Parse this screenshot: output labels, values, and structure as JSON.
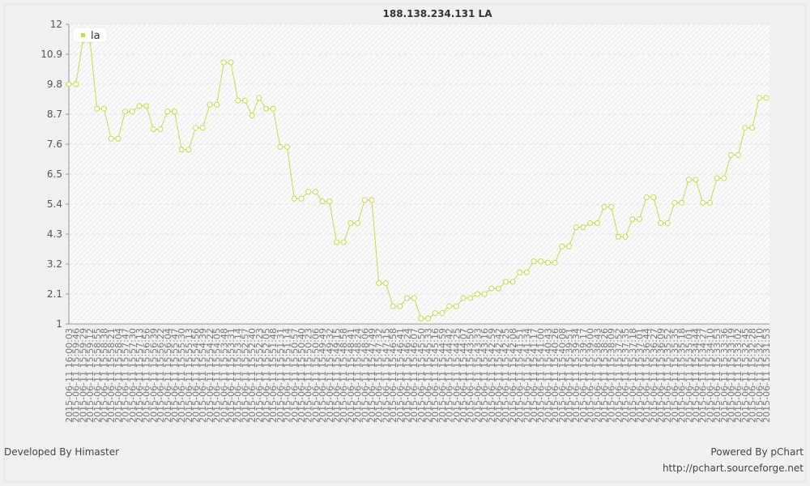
{
  "chart_data": {
    "type": "line",
    "title": "188.138.234.131 LA",
    "footer_left": "Developed By Himaster",
    "footer_right": "Powered By pChart",
    "footer_url": "http://pchart.sourceforge.net",
    "legend": "top-left",
    "grid": true,
    "ylim": [
      1,
      12
    ],
    "yticks": [
      1,
      2.1,
      3.2,
      4.3,
      5.4,
      6.5,
      7.6,
      8.7,
      9.8,
      10.9,
      12
    ],
    "categories": [
      "2015-06-11 16:00:03",
      "2015-06-11 15:59:46",
      "2015-06-11 15:59:29",
      "2015-06-11 15:59:12",
      "2015-06-11 15:58:55",
      "2015-06-11 15:58:38",
      "2015-06-11 15:58:21",
      "2015-06-11 15:58:04",
      "2015-06-11 15:57:47",
      "2015-06-11 15:57:30",
      "2015-06-11 15:57:13",
      "2015-06-11 15:56:56",
      "2015-06-11 15:56:39",
      "2015-06-11 15:56:22",
      "2015-06-11 15:56:04",
      "2015-06-11 15:55:47",
      "2015-06-11 15:55:30",
      "2015-06-11 15:55:13",
      "2015-06-11 15:54:56",
      "2015-06-11 15:54:39",
      "2015-06-11 15:54:22",
      "2015-06-11 15:54:05",
      "2015-06-11 15:53:48",
      "2015-06-11 15:53:31",
      "2015-06-11 15:53:14",
      "2015-06-11 15:52:57",
      "2015-06-11 15:52:40",
      "2015-06-11 15:52:23",
      "2015-06-11 15:52:05",
      "2015-06-11 15:51:48",
      "2015-06-11 15:51:31",
      "2015-06-11 15:51:14",
      "2015-06-11 15:50:57",
      "2015-06-11 15:50:40",
      "2015-06-11 15:50:23",
      "2015-06-11 15:50:06",
      "2015-06-11 15:49:49",
      "2015-06-11 15:49:32",
      "2015-06-11 15:49:15",
      "2015-06-11 15:48:58",
      "2015-06-11 15:48:41",
      "2015-06-11 15:48:24",
      "2015-06-11 15:48:06",
      "2015-06-11 15:47:49",
      "2015-06-11 15:47:32",
      "2015-06-11 15:47:15",
      "2015-06-11 15:46:58",
      "2015-06-11 15:46:41",
      "2015-06-11 15:46:24",
      "2015-06-11 15:46:07",
      "2015-06-11 15:45:50",
      "2015-06-11 15:45:33",
      "2015-06-11 15:45:16",
      "2015-06-11 15:44:59",
      "2015-06-11 15:44:42",
      "2015-06-11 15:44:25",
      "2015-06-11 15:44:07",
      "2015-06-11 15:43:50",
      "2015-06-11 15:43:33",
      "2015-06-11 15:43:16",
      "2015-06-11 15:42:59",
      "2015-06-11 15:42:42",
      "2015-06-11 15:42:25",
      "2015-06-11 15:42:08",
      "2015-06-11 15:41:51",
      "2015-06-11 15:41:34",
      "2015-06-11 15:41:17",
      "2015-06-11 15:41:00",
      "2015-06-11 15:40:43",
      "2015-06-11 15:40:26",
      "2015-06-11 15:40:08",
      "2015-06-11 15:39:51",
      "2015-06-11 15:39:34",
      "2015-06-11 15:39:17",
      "2015-06-11 15:39:00",
      "2015-06-11 15:38:43",
      "2015-06-11 15:38:26",
      "2015-06-11 15:38:09",
      "2015-06-11 15:37:52",
      "2015-06-11 15:37:35",
      "2015-06-11 15:37:18",
      "2015-06-11 15:37:01",
      "2015-06-11 15:36:44",
      "2015-06-11 15:36:27",
      "2015-06-11 15:36:09",
      "2015-06-11 15:35:52",
      "2015-06-11 15:35:35",
      "2015-06-11 15:35:18",
      "2015-06-11 15:35:01",
      "2015-06-11 15:34:44",
      "2015-06-11 15:34:27",
      "2015-06-11 15:34:10",
      "2015-06-11 15:33:53",
      "2015-06-11 15:33:36",
      "2015-06-11 15:33:19",
      "2015-06-11 15:33:02",
      "2015-06-11 15:32:45",
      "2015-06-11 15:32:28",
      "2015-06-11 15:32:10",
      "2015-06-11 15:31:53"
    ],
    "series": [
      {
        "name": "la",
        "color": "#c3dc4a",
        "values": [
          9.8,
          9.8,
          11.4,
          11.4,
          8.9,
          8.9,
          7.8,
          7.8,
          8.8,
          8.8,
          9.0,
          9.0,
          8.15,
          8.15,
          8.8,
          8.8,
          7.4,
          7.4,
          8.2,
          8.2,
          9.05,
          9.05,
          10.6,
          10.6,
          9.2,
          9.2,
          8.65,
          9.3,
          8.9,
          8.9,
          7.5,
          7.5,
          5.6,
          5.6,
          5.85,
          5.85,
          5.5,
          5.5,
          4.0,
          4.0,
          4.7,
          4.7,
          5.55,
          5.55,
          2.5,
          2.5,
          1.65,
          1.65,
          1.95,
          1.95,
          1.2,
          1.2,
          1.4,
          1.4,
          1.65,
          1.65,
          1.95,
          1.95,
          2.1,
          2.1,
          2.3,
          2.3,
          2.55,
          2.55,
          2.9,
          2.9,
          3.3,
          3.3,
          3.25,
          3.25,
          3.85,
          3.85,
          4.55,
          4.55,
          4.7,
          4.7,
          5.3,
          5.3,
          4.2,
          4.2,
          4.85,
          4.85,
          5.65,
          5.65,
          4.7,
          4.7,
          5.45,
          5.45,
          6.3,
          6.3,
          5.45,
          5.45,
          6.35,
          6.35,
          7.2,
          7.2,
          8.2,
          8.2,
          9.3,
          9.3
        ]
      }
    ]
  }
}
